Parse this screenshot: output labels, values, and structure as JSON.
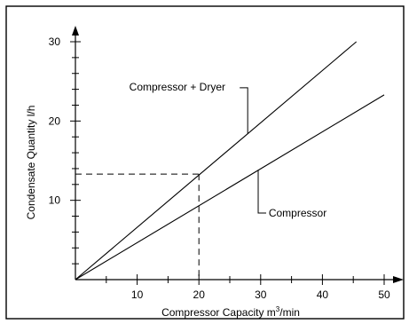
{
  "chart_data": {
    "type": "line",
    "title": "",
    "xlabel": "Compressor Capacity",
    "xlabel_unit_base": "m",
    "xlabel_unit_exp": "3",
    "xlabel_unit_tail": "/min",
    "ylabel": "Condensate Quantity l/h",
    "xlim": [
      0,
      50
    ],
    "ylim": [
      0,
      30
    ],
    "x_ticks": [
      10,
      20,
      30,
      40,
      50
    ],
    "y_ticks": [
      10,
      20,
      30
    ],
    "x_minor_step": 5,
    "y_minor_step": 2,
    "grid": false,
    "legend": "none",
    "series": [
      {
        "label": "Compressor + Dryer",
        "x": [
          0,
          45.5
        ],
        "y": [
          0,
          30
        ]
      },
      {
        "label": "Compressor",
        "x": [
          0,
          50
        ],
        "y": [
          0,
          23.3
        ]
      }
    ],
    "reference": {
      "x": 20,
      "y": 13.3,
      "style": "dashed"
    },
    "annotations": [
      {
        "text": "Compressor + Dryer",
        "series_index": 0,
        "point_x": 27.9,
        "label_x": 16.5,
        "label_y": 23.3
      },
      {
        "text": "Compressor",
        "series_index": 1,
        "point_x": 29.6,
        "label_x": 31.3,
        "label_y": 8.4
      }
    ]
  }
}
